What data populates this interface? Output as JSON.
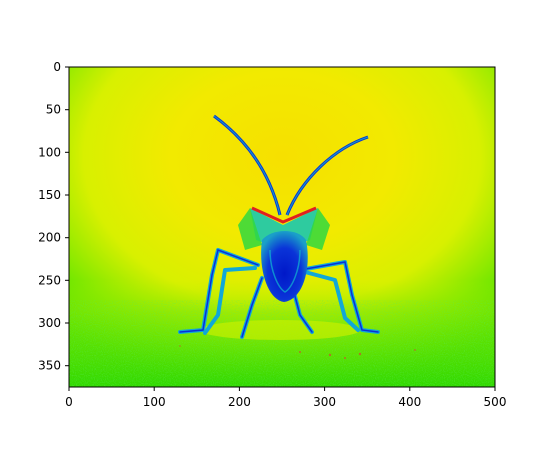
{
  "figure": {
    "image_extent": {
      "x": [
        0,
        500
      ],
      "y": [
        0,
        375
      ]
    },
    "y_axis_inverted": true,
    "x_ticks": [
      "0",
      "100",
      "200",
      "300",
      "400",
      "500"
    ],
    "y_ticks": [
      "0",
      "50",
      "100",
      "150",
      "200",
      "250",
      "300",
      "350"
    ],
    "colormap": "false-color (blue-green-yellow-red)",
    "subject": "insect",
    "colors": {
      "background": "#f2ea00",
      "edge_green": "#33e000",
      "body_blue": "#0a2fd8",
      "cyan": "#10c0c0",
      "red_accent": "#e02020"
    }
  }
}
